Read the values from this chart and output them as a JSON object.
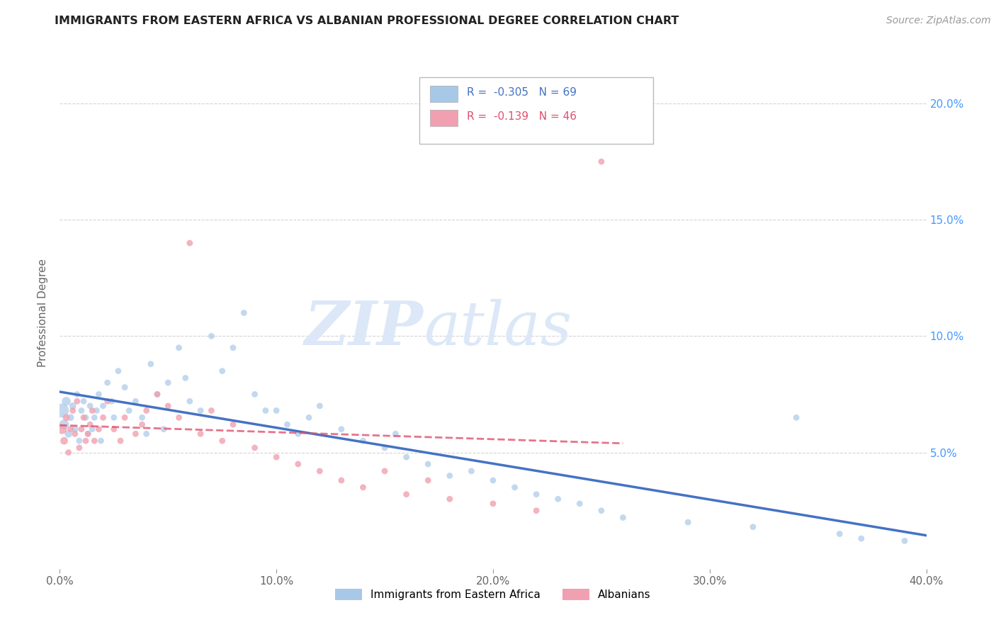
{
  "title": "IMMIGRANTS FROM EASTERN AFRICA VS ALBANIAN PROFESSIONAL DEGREE CORRELATION CHART",
  "source_text": "Source: ZipAtlas.com",
  "ylabel": "Professional Degree",
  "xlim": [
    0.0,
    0.4
  ],
  "ylim": [
    0.0,
    0.22
  ],
  "xtick_labels": [
    "0.0%",
    "10.0%",
    "20.0%",
    "30.0%",
    "40.0%"
  ],
  "xtick_vals": [
    0.0,
    0.1,
    0.2,
    0.3,
    0.4
  ],
  "ytick_vals": [
    0.05,
    0.1,
    0.15,
    0.2
  ],
  "right_ytick_labels": [
    "5.0%",
    "10.0%",
    "15.0%",
    "20.0%"
  ],
  "blue_color": "#a8c8e8",
  "pink_color": "#f0a0b0",
  "blue_line_color": "#4472c4",
  "pink_line_color": "#e05070",
  "right_label_color": "#4499ff",
  "title_color": "#222222",
  "background_color": "#ffffff",
  "grid_color": "#d0d0d0",
  "watermark_color": "#dce8f8",
  "legend_R_blue": "-0.305",
  "legend_N_blue": "69",
  "legend_R_pink": "-0.139",
  "legend_N_pink": "46",
  "legend_label_blue": "Immigrants from Eastern Africa",
  "legend_label_pink": "Albanians",
  "blue_scatter_x": [
    0.001,
    0.002,
    0.003,
    0.004,
    0.005,
    0.006,
    0.007,
    0.008,
    0.009,
    0.01,
    0.011,
    0.012,
    0.013,
    0.014,
    0.015,
    0.016,
    0.017,
    0.018,
    0.019,
    0.02,
    0.022,
    0.024,
    0.025,
    0.027,
    0.03,
    0.032,
    0.035,
    0.038,
    0.04,
    0.042,
    0.045,
    0.048,
    0.05,
    0.055,
    0.058,
    0.06,
    0.065,
    0.07,
    0.075,
    0.08,
    0.085,
    0.09,
    0.095,
    0.1,
    0.105,
    0.11,
    0.115,
    0.12,
    0.13,
    0.14,
    0.15,
    0.155,
    0.16,
    0.17,
    0.18,
    0.19,
    0.2,
    0.21,
    0.22,
    0.23,
    0.24,
    0.25,
    0.26,
    0.29,
    0.32,
    0.34,
    0.36,
    0.37,
    0.39
  ],
  "blue_scatter_y": [
    0.068,
    0.062,
    0.072,
    0.058,
    0.065,
    0.07,
    0.06,
    0.075,
    0.055,
    0.068,
    0.072,
    0.065,
    0.058,
    0.07,
    0.06,
    0.065,
    0.068,
    0.075,
    0.055,
    0.07,
    0.08,
    0.072,
    0.065,
    0.085,
    0.078,
    0.068,
    0.072,
    0.065,
    0.058,
    0.088,
    0.075,
    0.06,
    0.08,
    0.095,
    0.082,
    0.072,
    0.068,
    0.1,
    0.085,
    0.095,
    0.11,
    0.075,
    0.068,
    0.068,
    0.062,
    0.058,
    0.065,
    0.07,
    0.06,
    0.055,
    0.052,
    0.058,
    0.048,
    0.045,
    0.04,
    0.042,
    0.038,
    0.035,
    0.032,
    0.03,
    0.028,
    0.025,
    0.022,
    0.02,
    0.018,
    0.065,
    0.015,
    0.013,
    0.012
  ],
  "blue_scatter_sizes": [
    200,
    100,
    80,
    60,
    50,
    50,
    50,
    40,
    40,
    40,
    40,
    40,
    40,
    40,
    40,
    40,
    40,
    40,
    40,
    40,
    40,
    40,
    40,
    40,
    40,
    40,
    40,
    40,
    40,
    40,
    40,
    40,
    40,
    40,
    40,
    40,
    40,
    40,
    40,
    40,
    40,
    40,
    40,
    40,
    40,
    40,
    40,
    40,
    40,
    40,
    40,
    40,
    40,
    40,
    40,
    40,
    40,
    40,
    40,
    40,
    40,
    40,
    40,
    40,
    40,
    40,
    40,
    40,
    40
  ],
  "pink_scatter_x": [
    0.001,
    0.002,
    0.003,
    0.004,
    0.005,
    0.006,
    0.007,
    0.008,
    0.009,
    0.01,
    0.011,
    0.012,
    0.013,
    0.014,
    0.015,
    0.016,
    0.018,
    0.02,
    0.022,
    0.025,
    0.028,
    0.03,
    0.035,
    0.038,
    0.04,
    0.045,
    0.05,
    0.055,
    0.06,
    0.065,
    0.07,
    0.075,
    0.08,
    0.09,
    0.1,
    0.11,
    0.12,
    0.13,
    0.14,
    0.15,
    0.16,
    0.17,
    0.18,
    0.2,
    0.22,
    0.25
  ],
  "pink_scatter_y": [
    0.06,
    0.055,
    0.065,
    0.05,
    0.06,
    0.068,
    0.058,
    0.072,
    0.052,
    0.06,
    0.065,
    0.055,
    0.058,
    0.062,
    0.068,
    0.055,
    0.06,
    0.065,
    0.072,
    0.06,
    0.055,
    0.065,
    0.058,
    0.062,
    0.068,
    0.075,
    0.07,
    0.065,
    0.14,
    0.058,
    0.068,
    0.055,
    0.062,
    0.052,
    0.048,
    0.045,
    0.042,
    0.038,
    0.035,
    0.042,
    0.032,
    0.038,
    0.03,
    0.028,
    0.025,
    0.175
  ],
  "pink_scatter_sizes": [
    100,
    60,
    50,
    40,
    40,
    40,
    40,
    40,
    40,
    40,
    40,
    40,
    40,
    40,
    40,
    40,
    40,
    40,
    40,
    40,
    40,
    40,
    40,
    40,
    40,
    40,
    40,
    40,
    40,
    40,
    40,
    40,
    40,
    40,
    40,
    40,
    40,
    40,
    40,
    40,
    40,
    40,
    40,
    40,
    40,
    40
  ]
}
